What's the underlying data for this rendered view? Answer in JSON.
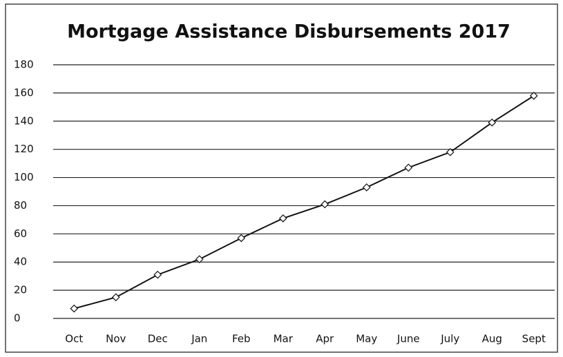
{
  "chart_data": {
    "type": "line",
    "title": "Mortgage Assistance Disbursements 2017",
    "categories": [
      "Oct",
      "Nov",
      "Dec",
      "Jan",
      "Feb",
      "Mar",
      "Apr",
      "May",
      "June",
      "July",
      "Aug",
      "Sept"
    ],
    "values": [
      7,
      15,
      31,
      42,
      57,
      71,
      81,
      93,
      107,
      118,
      139,
      158
    ],
    "color": "#111111",
    "ylim": [
      0,
      180
    ],
    "yticks": [
      0,
      20,
      40,
      60,
      80,
      100,
      120,
      140,
      160,
      180
    ],
    "grid": true
  }
}
